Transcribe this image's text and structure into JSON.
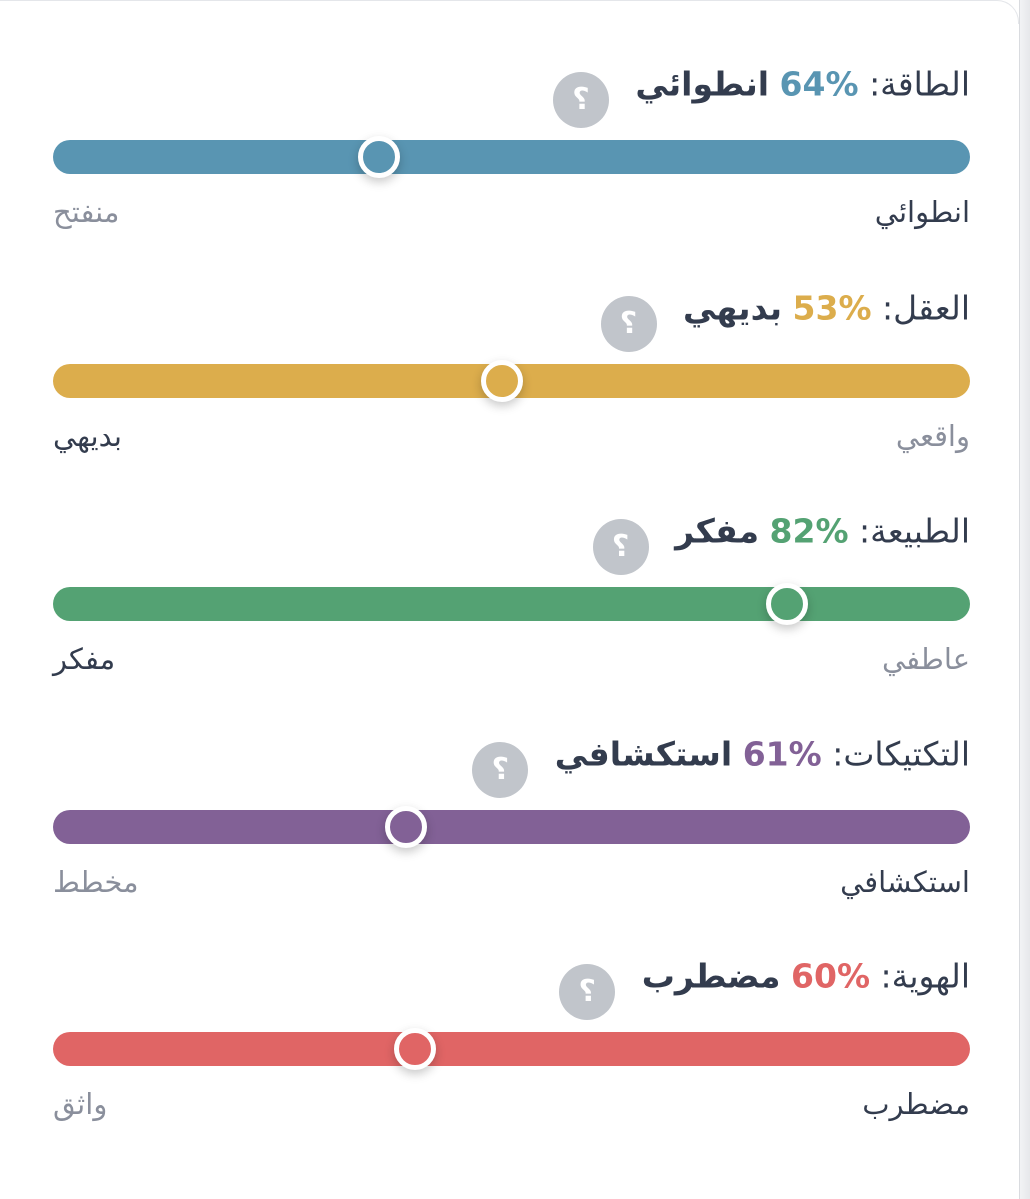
{
  "traits": [
    {
      "label": "الطاقة:",
      "percent": "%64",
      "result": "انطوائي",
      "help": "؟",
      "color": "#5995b2",
      "level": 0.355,
      "pole_right": "انطوائي",
      "pole_left": "منفتح",
      "active_side": "right"
    },
    {
      "label": "العقل:",
      "percent": "%53",
      "result": "بديهي",
      "help": "؟",
      "color": "#dcad4c",
      "level": 0.49,
      "pole_right": "واقعي",
      "pole_left": "بديهي",
      "active_side": "left"
    },
    {
      "label": "الطبيعة:",
      "percent": "%82",
      "result": "مفكر",
      "help": "؟",
      "color": "#54a273",
      "level": 0.8,
      "pole_right": "عاطفي",
      "pole_left": "مفكر",
      "active_side": "left"
    },
    {
      "label": "التكتيكات:",
      "percent": "%61",
      "result": "استكشافي",
      "help": "؟",
      "color": "#826196",
      "level": 0.385,
      "pole_right": "استكشافي",
      "pole_left": "مخطط",
      "active_side": "right"
    },
    {
      "label": "الهوية:",
      "percent": "%60",
      "result": "مضطرب",
      "help": "؟",
      "color": "#e06565",
      "level": 0.395,
      "pole_right": "مضطرب",
      "pole_left": "واثق",
      "active_side": "right"
    }
  ]
}
